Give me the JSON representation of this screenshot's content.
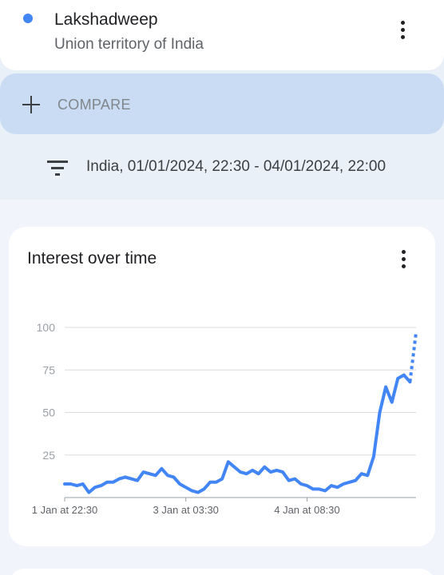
{
  "topic": {
    "title": "Lakshadweep",
    "subtitle": "Union territory of India",
    "dot_color": "#4285f4",
    "menu_icon": "more-vert-icon"
  },
  "compare": {
    "icon": "plus-icon",
    "label": "COMPARE"
  },
  "filter": {
    "icon": "filter-icon",
    "text": "India, 01/01/2024, 22:30 - 04/01/2024, 22:00"
  },
  "interest_card": {
    "title": "Interest over time",
    "menu_icon": "more-vert-icon"
  },
  "chart_data": {
    "type": "line",
    "title": "Interest over time",
    "xlabel": "",
    "ylabel": "",
    "ylim": [
      0,
      100
    ],
    "yticks": [
      25,
      50,
      75,
      100
    ],
    "xticks": [
      {
        "index": 0,
        "label": "1 Jan at 22:30"
      },
      {
        "index": 20,
        "label": "3 Jan at 03:30"
      },
      {
        "index": 40,
        "label": "4 Jan at 08:30"
      }
    ],
    "grid": true,
    "line_color": "#4285f4",
    "partial_last_point": true,
    "series": [
      {
        "values": [
          8,
          8,
          7,
          8,
          3,
          6,
          7,
          9,
          9,
          11,
          12,
          11,
          10,
          15,
          14,
          13,
          17,
          13,
          12,
          8,
          6,
          4,
          3,
          5,
          9,
          9,
          11,
          21,
          18,
          15,
          14,
          16,
          14,
          18,
          15,
          16,
          15,
          10,
          11,
          8,
          7,
          5,
          5,
          4,
          7,
          6,
          8,
          9,
          10,
          14,
          13,
          24,
          50,
          65,
          56,
          70,
          72,
          68,
          97
        ]
      }
    ]
  }
}
